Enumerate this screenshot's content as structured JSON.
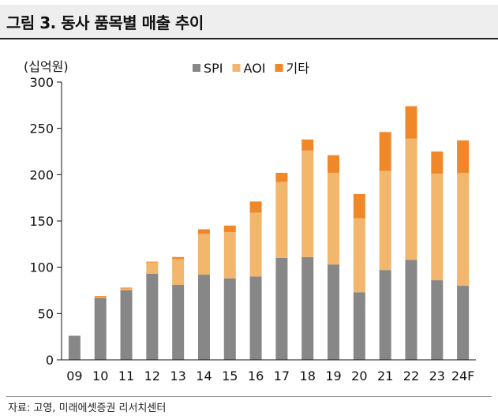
{
  "title": "그림 3. 동사 품목별 매출 추이",
  "source": "자료: 고영, 미래에셋증권 리서치센터",
  "chart_data": {
    "type": "bar",
    "stacked": true,
    "unit_label": "(십억원)",
    "categories": [
      "09",
      "10",
      "11",
      "12",
      "13",
      "14",
      "15",
      "16",
      "17",
      "18",
      "19",
      "20",
      "21",
      "22",
      "23",
      "24F"
    ],
    "series": [
      {
        "name": "SPI",
        "color": "#878787",
        "values": [
          26,
          67,
          75,
          93,
          81,
          92,
          88,
          90,
          110,
          111,
          103,
          73,
          97,
          108,
          86,
          80
        ]
      },
      {
        "name": "AOI",
        "color": "#f2b66d",
        "values": [
          0,
          1,
          2,
          12,
          28,
          44,
          50,
          69,
          82,
          115,
          99,
          80,
          107,
          131,
          115,
          122
        ]
      },
      {
        "name": "기타",
        "color": "#f0882a",
        "values": [
          0,
          1,
          1,
          1,
          2,
          5,
          7,
          12,
          10,
          12,
          19,
          26,
          42,
          35,
          24,
          35
        ]
      }
    ],
    "ylim": [
      0,
      300
    ],
    "yticks": [
      0,
      50,
      100,
      150,
      200,
      250,
      300
    ],
    "legend_position": "top-center",
    "grid": false
  }
}
